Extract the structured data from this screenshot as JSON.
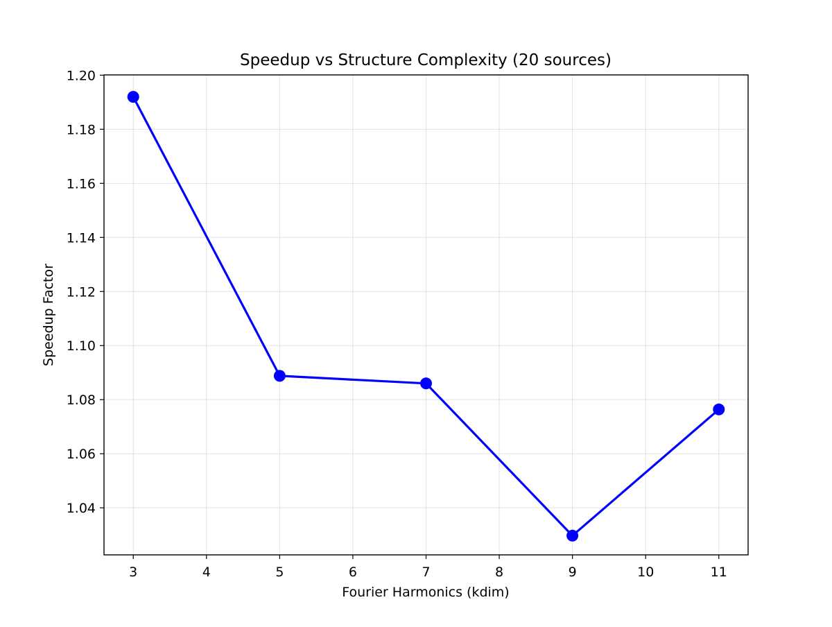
{
  "chart_data": {
    "type": "line",
    "title": "Speedup vs Structure Complexity (20 sources)",
    "xlabel": "Fourier Harmonics (kdim)",
    "ylabel": "Speedup Factor",
    "x": [
      3,
      5,
      7,
      9,
      11
    ],
    "series": [
      {
        "values": [
          1.192,
          1.0888,
          1.086,
          1.0297,
          1.0764
        ]
      }
    ],
    "xlim": [
      2.6,
      11.4
    ],
    "ylim": [
      1.0226,
      1.2001
    ],
    "xticks": [
      3,
      4,
      5,
      6,
      7,
      8,
      9,
      10,
      11
    ],
    "xtick_labels": [
      "3",
      "4",
      "5",
      "6",
      "7",
      "8",
      "9",
      "10",
      "11"
    ],
    "yticks": [
      1.04,
      1.06,
      1.08,
      1.1,
      1.12,
      1.14,
      1.16,
      1.18,
      1.2
    ],
    "ytick_labels": [
      "1.04",
      "1.06",
      "1.08",
      "1.10",
      "1.12",
      "1.14",
      "1.16",
      "1.18",
      "1.20"
    ],
    "grid": true,
    "line_color": "#0000ff",
    "marker": "circle"
  }
}
